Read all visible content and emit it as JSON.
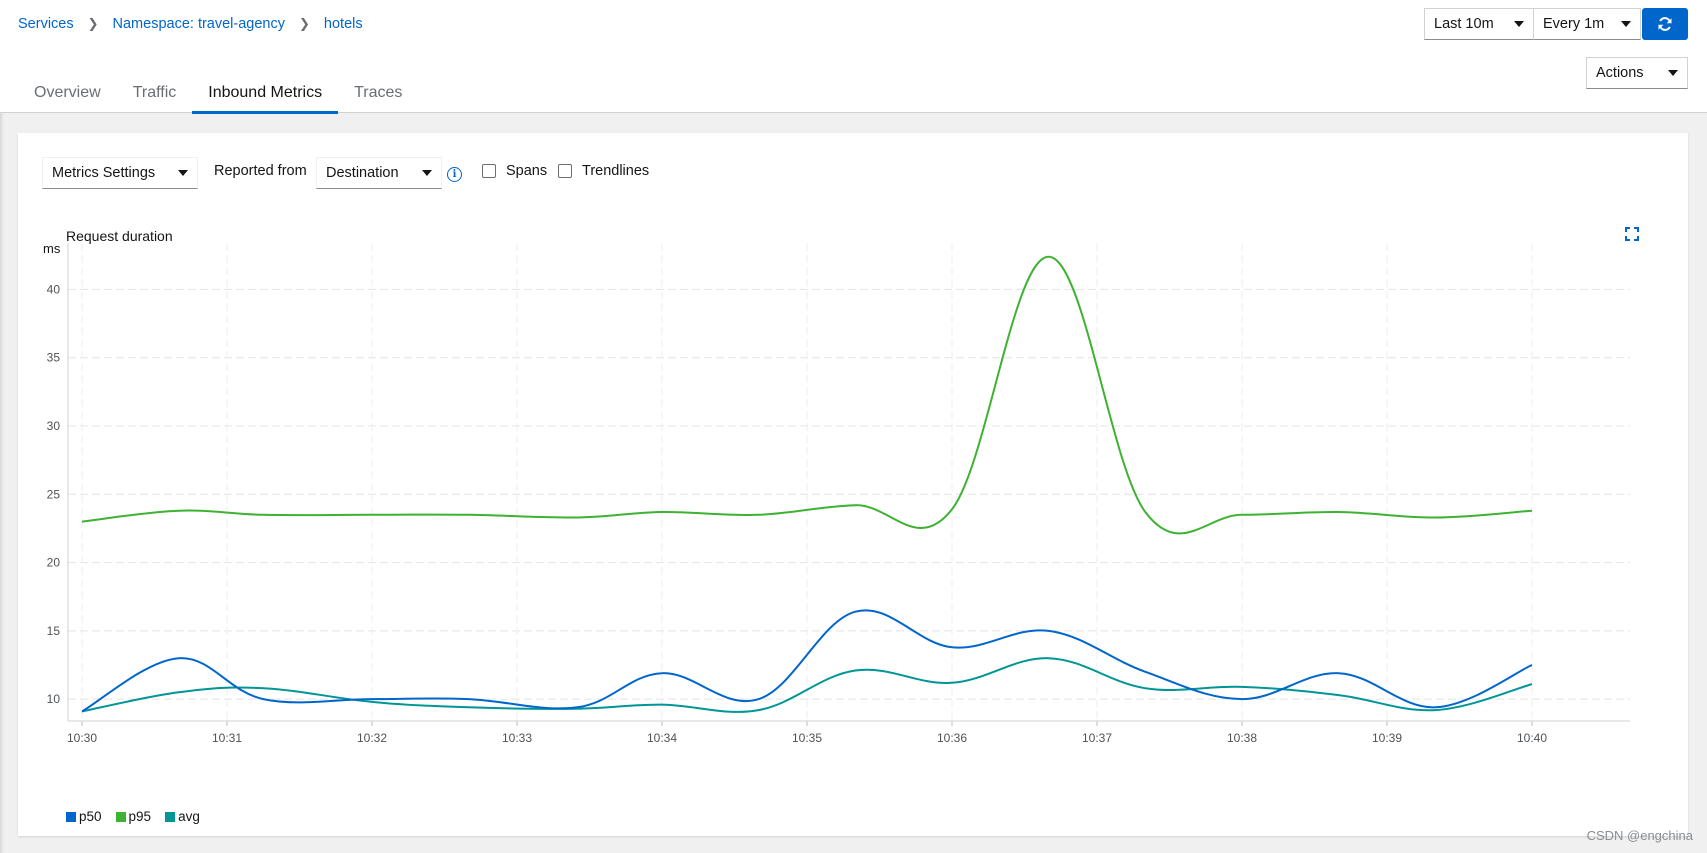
{
  "breadcrumb": {
    "items": [
      "Services",
      "Namespace: travel-agency",
      "hotels"
    ]
  },
  "tabs": [
    "Overview",
    "Traffic",
    "Inbound Metrics",
    "Traces"
  ],
  "active_tab": "Inbound Metrics",
  "controls": {
    "duration": "Last 10m",
    "refresh_interval": "Every 1m",
    "actions": "Actions"
  },
  "toolbar": {
    "metrics_settings": "Metrics Settings",
    "reported_from_label": "Reported from",
    "reported_from_value": "Destination",
    "spans_label": "Spans",
    "trendlines_label": "Trendlines"
  },
  "colors": {
    "accent": "#0066cc",
    "p50": "#0066cc",
    "p95": "#3eb233",
    "avg": "#009596"
  },
  "chart_data": {
    "type": "line",
    "title": "Request duration",
    "ylabel": "ms",
    "x": [
      "10:30",
      "10:30:40",
      "10:31:15",
      "10:32",
      "10:32:40",
      "10:33:25",
      "10:34",
      "10:34:40",
      "10:35:20",
      "10:36",
      "10:36:40",
      "10:37:20",
      "10:38",
      "10:38:40",
      "10:39:20",
      "10:40"
    ],
    "x_ticks": [
      "10:30",
      "10:31",
      "10:32",
      "10:33",
      "10:34",
      "10:35",
      "10:36",
      "10:37",
      "10:38",
      "10:39",
      "10:40"
    ],
    "y_ticks": [
      10,
      15,
      20,
      25,
      30,
      35,
      40
    ],
    "ylim": [
      8.4,
      43.4
    ],
    "grid": true,
    "legend_position": "bottom-left",
    "series": [
      {
        "name": "p50",
        "values": [
          9.1,
          13.0,
          10.0,
          10.0,
          10.0,
          9.4,
          11.9,
          10.0,
          16.4,
          13.8,
          15.0,
          12.0,
          10.0,
          11.9,
          9.4,
          12.5
        ]
      },
      {
        "name": "p95",
        "values": [
          23.0,
          23.8,
          23.5,
          23.5,
          23.5,
          23.3,
          23.7,
          23.5,
          24.2,
          23.9,
          42.4,
          23.7,
          23.5,
          23.7,
          23.3,
          23.8
        ]
      },
      {
        "name": "avg",
        "values": [
          9.1,
          10.5,
          10.8,
          9.8,
          9.4,
          9.3,
          9.6,
          9.2,
          12.1,
          11.2,
          13.0,
          10.8,
          10.9,
          10.3,
          9.2,
          11.1
        ]
      }
    ]
  },
  "watermark": "CSDN @engchina"
}
